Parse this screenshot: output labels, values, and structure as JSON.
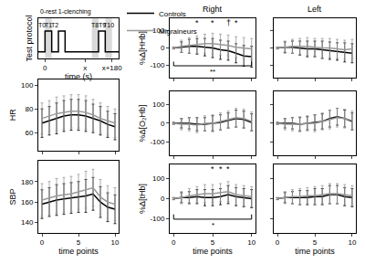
{
  "chart_data": [
    {
      "type": "step",
      "ylabel": "Test protocol",
      "xlabel": "time (s)",
      "subtitle": "0-rest 1-clenching",
      "x": [
        -10,
        0,
        0,
        10,
        10,
        20,
        20,
        30,
        30,
        80,
        80,
        90,
        90,
        110
      ],
      "values": [
        0,
        0,
        1,
        1,
        0,
        0,
        1,
        1,
        0,
        0,
        1,
        1,
        0,
        0
      ],
      "color": "#000000",
      "xlim": [
        -10,
        110
      ],
      "xticks": [
        0,
        {
          "value": 60,
          "label": "x"
        },
        {
          "value": 100,
          "label": "x+180"
        }
      ],
      "ylim": [
        -0.3,
        1.6
      ],
      "tick_labels": "x",
      "segments": [
        {
          "label": "T0",
          "x0": -10,
          "x1": 0
        },
        {
          "label": "T1",
          "x0": 0,
          "x1": 10
        },
        {
          "label": "T2",
          "x0": 10,
          "x1": 20
        },
        {
          "label": "T8",
          "x0": 70,
          "x1": 80
        },
        {
          "label": "T9",
          "x0": 80,
          "x1": 90
        },
        {
          "label": "T10",
          "x0": 90,
          "x1": 100
        }
      ]
    },
    {
      "type": "line",
      "ylabel": "HR",
      "legend": "top",
      "tick_labels": "y",
      "x": [
        0,
        1,
        2,
        3,
        4,
        5,
        6,
        7,
        8,
        9,
        10
      ],
      "xlim": [
        -0.5,
        10.5
      ],
      "xticks": [
        0,
        5,
        10
      ],
      "ylim": [
        45,
        105
      ],
      "yticks": [
        60,
        80,
        100
      ],
      "series": [
        {
          "name": "Controls",
          "color": "#000000",
          "values": [
            68,
            70,
            72,
            74,
            75,
            75,
            74,
            72,
            70,
            67,
            65
          ],
          "errors": [
            12,
            12,
            13,
            13,
            13,
            13,
            13,
            12,
            12,
            11,
            11
          ]
        },
        {
          "name": "Migraineurs",
          "color": "#999999",
          "values": [
            72,
            74,
            76,
            77,
            78,
            78,
            77,
            75,
            72,
            70,
            68
          ],
          "errors": [
            13,
            13,
            14,
            14,
            14,
            14,
            14,
            13,
            13,
            12,
            12
          ]
        }
      ]
    },
    {
      "type": "line",
      "ylabel": "SBP",
      "xlabel": "time points",
      "x": [
        0,
        1,
        2,
        3,
        4,
        5,
        6,
        7,
        8,
        9,
        10
      ],
      "xlim": [
        -0.5,
        10.5
      ],
      "xticks": [
        0,
        5,
        10
      ],
      "ylim": [
        130,
        200
      ],
      "yticks": [
        140,
        160,
        180
      ],
      "series": [
        {
          "name": "Controls",
          "color": "#000000",
          "values": [
            158,
            160,
            162,
            163,
            164,
            165,
            166,
            168,
            160,
            155,
            153
          ],
          "errors": [
            14,
            14,
            15,
            15,
            15,
            15,
            16,
            16,
            15,
            14,
            14
          ]
        },
        {
          "name": "Migraineurs",
          "color": "#999999",
          "values": [
            162,
            164,
            166,
            167,
            168,
            170,
            172,
            174,
            165,
            160,
            158
          ],
          "errors": [
            16,
            16,
            17,
            17,
            17,
            17,
            18,
            18,
            17,
            16,
            16
          ]
        }
      ]
    },
    {
      "type": "line",
      "title": "Right",
      "ylabel": "%Δ[HHb]",
      "tick_labels": "y",
      "x": [
        0,
        1,
        2,
        3,
        4,
        5,
        6,
        7,
        8,
        9,
        10
      ],
      "xlim": [
        -0.5,
        10.5
      ],
      "xticks": [
        0,
        5,
        10
      ],
      "ylim": [
        -170,
        170
      ],
      "yticks": [
        -100,
        0,
        100
      ],
      "annotations": [
        {
          "x": 3,
          "text": "*"
        },
        {
          "x": 5,
          "text": "*"
        },
        {
          "x": 7,
          "text": "†"
        },
        {
          "x": 8,
          "text": "*"
        }
      ],
      "brackets": [
        {
          "x0": 0,
          "x1": 10,
          "text": "**"
        }
      ],
      "series": [
        {
          "name": "Controls",
          "color": "#000000",
          "values": [
            0,
            5,
            10,
            10,
            5,
            0,
            -10,
            -15,
            -30,
            -45,
            -50
          ],
          "errors": [
            5,
            30,
            40,
            45,
            50,
            55,
            55,
            55,
            55,
            60,
            60
          ]
        },
        {
          "name": "Migraineurs",
          "color": "#999999",
          "values": [
            0,
            10,
            15,
            20,
            25,
            25,
            20,
            15,
            5,
            0,
            -5
          ],
          "errors": [
            5,
            35,
            45,
            50,
            55,
            60,
            60,
            60,
            60,
            60,
            60
          ]
        }
      ]
    },
    {
      "type": "line",
      "ylabel": "%Δ[O₂Hb]",
      "tick_labels": "y",
      "x": [
        0,
        1,
        2,
        3,
        4,
        5,
        6,
        7,
        8,
        9,
        10
      ],
      "xlim": [
        -0.5,
        10.5
      ],
      "xticks": [
        0,
        5,
        10
      ],
      "ylim": [
        -170,
        170
      ],
      "yticks": [
        -100,
        0,
        100
      ],
      "series": [
        {
          "name": "Controls",
          "color": "#000000",
          "values": [
            0,
            0,
            0,
            -5,
            -5,
            0,
            5,
            15,
            25,
            20,
            5
          ],
          "errors": [
            5,
            25,
            30,
            35,
            35,
            40,
            40,
            40,
            45,
            45,
            45
          ]
        },
        {
          "name": "Migraineurs",
          "color": "#999999",
          "values": [
            0,
            -5,
            -5,
            -10,
            0,
            0,
            10,
            20,
            30,
            25,
            10
          ],
          "errors": [
            5,
            30,
            35,
            40,
            40,
            45,
            45,
            45,
            50,
            50,
            50
          ]
        }
      ]
    },
    {
      "type": "line",
      "ylabel": "%Δ[tHb]",
      "xlabel": "time points",
      "x": [
        0,
        1,
        2,
        3,
        4,
        5,
        6,
        7,
        8,
        9,
        10
      ],
      "xlim": [
        -0.5,
        10.5
      ],
      "xticks": [
        0,
        5,
        10
      ],
      "ylim": [
        -170,
        170
      ],
      "yticks": [
        -100,
        0,
        100
      ],
      "annotations": [
        {
          "x": 5,
          "text": "*"
        },
        {
          "x": 6,
          "text": "*"
        },
        {
          "x": 7,
          "text": "*"
        }
      ],
      "brackets": [
        {
          "x0": 0,
          "x1": 10,
          "text": "*"
        }
      ],
      "series": [
        {
          "name": "Controls",
          "color": "#000000",
          "values": [
            0,
            5,
            5,
            10,
            5,
            5,
            10,
            20,
            10,
            5,
            0
          ],
          "errors": [
            5,
            25,
            30,
            35,
            40,
            40,
            40,
            45,
            45,
            45,
            45
          ]
        },
        {
          "name": "Migraineurs",
          "color": "#999999",
          "values": [
            0,
            5,
            15,
            20,
            25,
            25,
            30,
            35,
            20,
            15,
            10
          ],
          "errors": [
            5,
            30,
            35,
            40,
            45,
            45,
            45,
            50,
            50,
            50,
            50
          ]
        }
      ]
    },
    {
      "type": "line",
      "title": "Left",
      "tick_labels": false,
      "x": [
        0,
        1,
        2,
        3,
        4,
        5,
        6,
        7,
        8,
        9,
        10
      ],
      "xlim": [
        -0.5,
        10.5
      ],
      "xticks": [
        0,
        5,
        10
      ],
      "ylim": [
        -170,
        170
      ],
      "yticks": [
        -100,
        0,
        100
      ],
      "series": [
        {
          "name": "Controls",
          "color": "#000000",
          "values": [
            0,
            5,
            5,
            0,
            -5,
            -5,
            -10,
            -15,
            -20,
            -25,
            -30
          ],
          "errors": [
            5,
            30,
            35,
            40,
            45,
            45,
            50,
            50,
            50,
            55,
            55
          ]
        },
        {
          "name": "Migraineurs",
          "color": "#999999",
          "values": [
            0,
            5,
            10,
            10,
            10,
            5,
            0,
            0,
            -5,
            -10,
            -5
          ],
          "errors": [
            5,
            35,
            40,
            45,
            50,
            50,
            55,
            55,
            55,
            55,
            55
          ]
        }
      ]
    },
    {
      "type": "line",
      "tick_labels": false,
      "x": [
        0,
        1,
        2,
        3,
        4,
        5,
        6,
        7,
        8,
        9,
        10
      ],
      "xlim": [
        -0.5,
        10.5
      ],
      "xticks": [
        0,
        5,
        10
      ],
      "ylim": [
        -170,
        170
      ],
      "yticks": [
        -100,
        0,
        100
      ],
      "series": [
        {
          "name": "Controls",
          "color": "#000000",
          "values": [
            0,
            0,
            0,
            -5,
            0,
            5,
            10,
            25,
            35,
            25,
            10
          ],
          "errors": [
            5,
            25,
            30,
            35,
            35,
            40,
            40,
            45,
            45,
            45,
            45
          ]
        },
        {
          "name": "Migraineurs",
          "color": "#999999",
          "values": [
            0,
            -5,
            -5,
            -5,
            0,
            0,
            10,
            20,
            30,
            25,
            15
          ],
          "errors": [
            5,
            30,
            35,
            40,
            40,
            45,
            45,
            50,
            50,
            50,
            50
          ]
        }
      ]
    },
    {
      "type": "line",
      "xlabel": "time points",
      "tick_labels": "x",
      "x": [
        0,
        1,
        2,
        3,
        4,
        5,
        6,
        7,
        8,
        9,
        10
      ],
      "xlim": [
        -0.5,
        10.5
      ],
      "xticks": [
        0,
        5,
        10
      ],
      "ylim": [
        -170,
        170
      ],
      "yticks": [
        -100,
        0,
        100
      ],
      "series": [
        {
          "name": "Controls",
          "color": "#000000",
          "values": [
            0,
            5,
            5,
            5,
            5,
            10,
            10,
            20,
            20,
            10,
            5
          ],
          "errors": [
            5,
            25,
            30,
            35,
            35,
            40,
            40,
            45,
            45,
            45,
            45
          ]
        },
        {
          "name": "Migraineurs",
          "color": "#999999",
          "values": [
            0,
            5,
            10,
            10,
            15,
            15,
            20,
            25,
            25,
            20,
            15
          ],
          "errors": [
            5,
            30,
            35,
            40,
            40,
            45,
            45,
            50,
            50,
            50,
            50
          ]
        }
      ]
    }
  ]
}
